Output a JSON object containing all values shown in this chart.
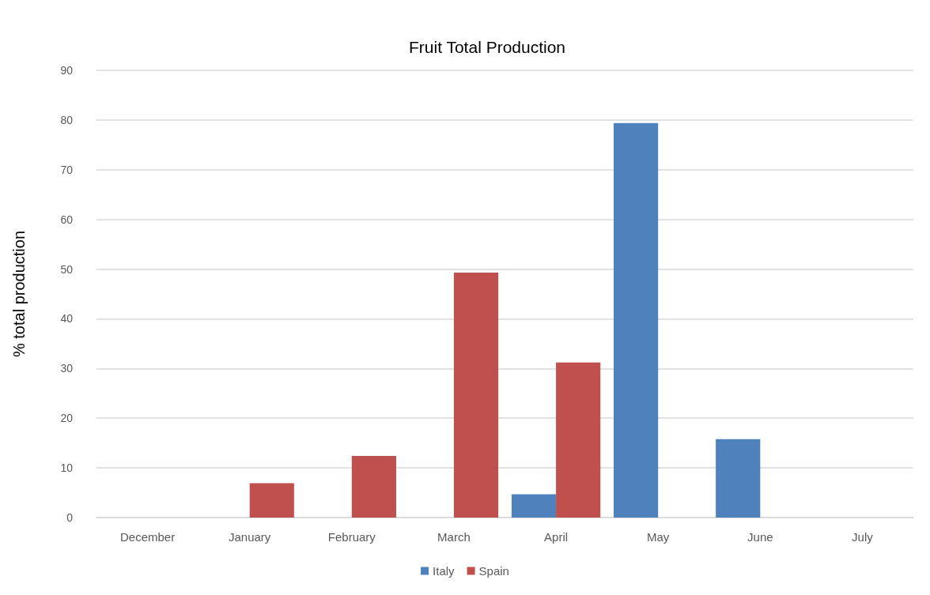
{
  "chart_data": {
    "type": "bar",
    "title": "Fruit Total Production",
    "ylabel": "% total production",
    "categories": [
      "December",
      "January",
      "February",
      "March",
      "April",
      "May",
      "June",
      "July"
    ],
    "series": [
      {
        "name": "Italy",
        "color": "#4f81bd",
        "values": [
          0,
          0,
          0,
          0,
          4.7,
          79.4,
          15.8,
          0
        ]
      },
      {
        "name": "Spain",
        "color": "#c0504d",
        "values": [
          0,
          6.9,
          12.4,
          49.3,
          31.2,
          0,
          0,
          0
        ]
      }
    ],
    "ylim": [
      0,
      90
    ],
    "yticks": [
      0,
      10,
      20,
      30,
      40,
      50,
      60,
      70,
      80,
      90
    ],
    "grid": "y",
    "legend": "bottom"
  }
}
